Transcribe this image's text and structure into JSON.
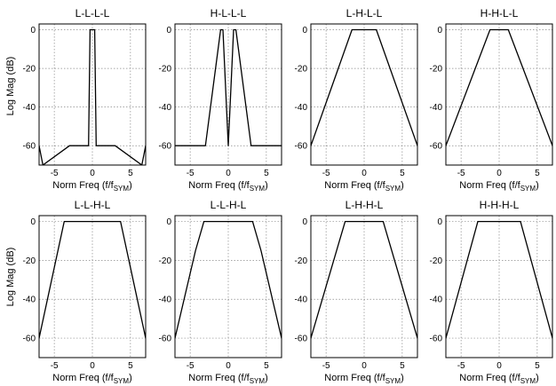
{
  "figure": {
    "ylabel": "Log Mag (dB)",
    "xlabel": "Norm Freq (f/f",
    "xlabel_sub": "SYM",
    "xlabel_close": ")"
  },
  "chart_data": [
    {
      "type": "line",
      "title": "L-L-L-L",
      "xlim": [
        -7,
        7
      ],
      "ylim": [
        -70,
        3
      ],
      "yticks": [
        0,
        -20,
        -40,
        -60
      ],
      "xticks": [
        -5,
        0,
        5
      ],
      "grid": true,
      "series": [
        {
          "values": [
            [
              -7,
              -60
            ],
            [
              -6.5,
              -70
            ],
            [
              -3,
              -60
            ],
            [
              -0.5,
              -60
            ],
            [
              -0.3,
              0
            ],
            [
              0.3,
              0
            ],
            [
              0.5,
              -60
            ],
            [
              3,
              -60
            ],
            [
              6.5,
              -70
            ],
            [
              7,
              -60
            ]
          ]
        }
      ]
    },
    {
      "type": "line",
      "title": "H-L-L-L",
      "xlim": [
        -7,
        7
      ],
      "ylim": [
        -70,
        3
      ],
      "yticks": [
        0,
        -20,
        -40,
        -60
      ],
      "xticks": [
        -5,
        0,
        5
      ],
      "grid": true,
      "series": [
        {
          "values": [
            [
              -7,
              -60
            ],
            [
              -3,
              -60
            ],
            [
              -1,
              0
            ],
            [
              -0.7,
              0
            ],
            [
              0,
              -60
            ],
            [
              0.7,
              0
            ],
            [
              1,
              0
            ],
            [
              3,
              -60
            ],
            [
              7,
              -60
            ]
          ]
        }
      ]
    },
    {
      "type": "line",
      "title": "L-H-L-L",
      "xlim": [
        -7,
        7
      ],
      "ylim": [
        -70,
        3
      ],
      "yticks": [
        0,
        -20,
        -40,
        -60
      ],
      "xticks": [
        -5,
        0,
        5
      ],
      "grid": true,
      "series": [
        {
          "values": [
            [
              -7,
              -60
            ],
            [
              -1.6,
              0
            ],
            [
              1.6,
              0
            ],
            [
              7,
              -60
            ]
          ]
        }
      ]
    },
    {
      "type": "line",
      "title": "H-H-L-L",
      "xlim": [
        -7,
        7
      ],
      "ylim": [
        -70,
        3
      ],
      "yticks": [
        0,
        -20,
        -40,
        -60
      ],
      "xticks": [
        -5,
        0,
        5
      ],
      "grid": true,
      "series": [
        {
          "values": [
            [
              -7,
              -60
            ],
            [
              -1.2,
              0
            ],
            [
              1.2,
              0
            ],
            [
              7,
              -60
            ]
          ]
        }
      ]
    },
    {
      "type": "line",
      "title": "L-L-H-L",
      "xlim": [
        -7,
        7
      ],
      "ylim": [
        -70,
        3
      ],
      "yticks": [
        0,
        -20,
        -40,
        -60
      ],
      "xticks": [
        -5,
        0,
        5
      ],
      "grid": true,
      "series": [
        {
          "values": [
            [
              -7,
              -60
            ],
            [
              -3.7,
              0
            ],
            [
              3.7,
              0
            ],
            [
              7,
              -60
            ]
          ]
        }
      ]
    },
    {
      "type": "line",
      "title": "L-L-H-L",
      "xlim": [
        -7,
        7
      ],
      "ylim": [
        -70,
        3
      ],
      "yticks": [
        0,
        -20,
        -40,
        -60
      ],
      "xticks": [
        -5,
        0,
        5
      ],
      "grid": true,
      "series": [
        {
          "values": [
            [
              -7,
              -60
            ],
            [
              -4.3,
              -15
            ],
            [
              -3.2,
              0
            ],
            [
              3.2,
              0
            ],
            [
              4.3,
              -15
            ],
            [
              7,
              -60
            ]
          ]
        }
      ]
    },
    {
      "type": "line",
      "title": "L-H-H-L",
      "xlim": [
        -7,
        7
      ],
      "ylim": [
        -70,
        3
      ],
      "yticks": [
        0,
        -20,
        -40,
        -60
      ],
      "xticks": [
        -5,
        0,
        5
      ],
      "grid": true,
      "series": [
        {
          "values": [
            [
              -7,
              -60
            ],
            [
              -2.5,
              0
            ],
            [
              2.5,
              0
            ],
            [
              7,
              -60
            ]
          ]
        }
      ]
    },
    {
      "type": "line",
      "title": "H-H-H-L",
      "xlim": [
        -7,
        7
      ],
      "ylim": [
        -70,
        3
      ],
      "yticks": [
        0,
        -20,
        -40,
        -60
      ],
      "xticks": [
        -5,
        0,
        5
      ],
      "grid": true,
      "series": [
        {
          "values": [
            [
              -7,
              -60
            ],
            [
              -2.8,
              0
            ],
            [
              2.8,
              0
            ],
            [
              7,
              -60
            ]
          ]
        }
      ]
    }
  ]
}
